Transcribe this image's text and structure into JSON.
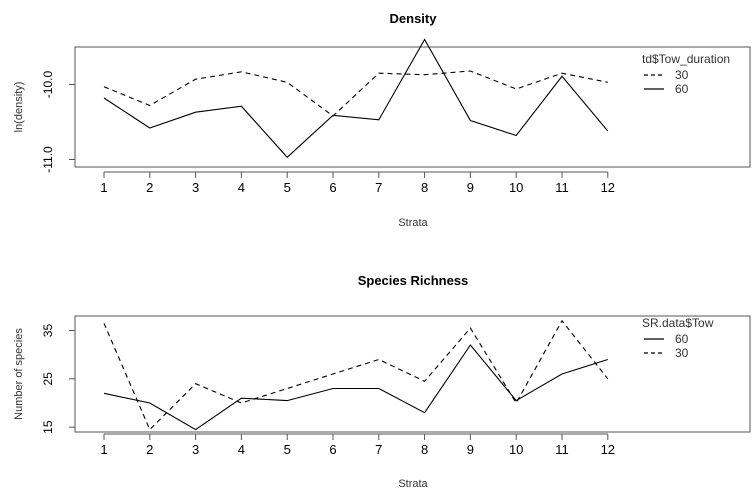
{
  "chart_data": [
    {
      "type": "line",
      "title": "Density",
      "xlabel": "Strata",
      "ylabel": "ln(density)",
      "categories": [
        "1",
        "2",
        "3",
        "4",
        "5",
        "6",
        "7",
        "8",
        "9",
        "10",
        "11",
        "12"
      ],
      "ylim": [
        -11.1,
        -9.5
      ],
      "yticks": [
        "-11.0",
        "-10.0"
      ],
      "legend_title": "td$Tow_duration",
      "legend_position": "top-right",
      "series": [
        {
          "name": "30",
          "style": "dashed",
          "color": "#000000",
          "values": [
            -10.03,
            -10.28,
            -9.93,
            -9.83,
            -9.97,
            -10.42,
            -9.85,
            -9.87,
            -9.82,
            -10.06,
            -9.85,
            -9.97
          ]
        },
        {
          "name": "60",
          "style": "solid",
          "color": "#000000",
          "values": [
            -10.18,
            -10.58,
            -10.37,
            -10.29,
            -10.97,
            -10.41,
            -10.47,
            -9.4,
            -10.48,
            -10.68,
            -9.89,
            -10.62
          ]
        }
      ]
    },
    {
      "type": "line",
      "title": "Species Richness",
      "xlabel": "Strata",
      "ylabel": "Number of species",
      "categories": [
        "1",
        "2",
        "3",
        "4",
        "5",
        "6",
        "7",
        "8",
        "9",
        "10",
        "11",
        "12"
      ],
      "ylim": [
        14,
        38
      ],
      "yticks": [
        "15",
        "25",
        "35"
      ],
      "legend_title": "SR.data$Tow",
      "legend_position": "top-right",
      "series": [
        {
          "name": "60",
          "style": "solid",
          "color": "#000000",
          "values": [
            22,
            20,
            14.5,
            21,
            20.5,
            23,
            23,
            18,
            32,
            20.5,
            26,
            29
          ]
        },
        {
          "name": "30",
          "style": "dashed",
          "color": "#000000",
          "values": [
            36.5,
            14.5,
            24,
            20,
            23,
            26,
            29,
            24.5,
            35.5,
            20,
            37,
            25
          ]
        }
      ]
    }
  ]
}
